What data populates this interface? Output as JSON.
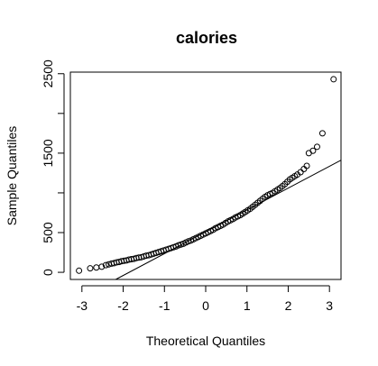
{
  "chart_data": {
    "type": "scatter",
    "title": "calories",
    "xlabel": "Theoretical Quantiles",
    "ylabel": "Sample Quantiles",
    "xlim": [
      -3.28,
      3.28
    ],
    "ylim": [
      -90,
      2520
    ],
    "xticks": [
      -3,
      -2,
      -1,
      0,
      1,
      2,
      3
    ],
    "xtick_labels": [
      "-3",
      "-2",
      "-1",
      "0",
      "1",
      "2",
      "3"
    ],
    "yticks": [
      0,
      500,
      1000,
      1500,
      2000,
      2500
    ],
    "ytick_labels": [
      "0",
      "500",
      "",
      "1500",
      "",
      "2500"
    ],
    "grid": false,
    "reference_line": {
      "intercept": 510,
      "slope": 275
    },
    "series": [
      {
        "marker": "open-circle",
        "points": [
          [
            -3.07,
            20
          ],
          [
            -2.8,
            50
          ],
          [
            -2.65,
            60
          ],
          [
            -2.52,
            70
          ],
          [
            -2.42,
            90
          ],
          [
            -2.35,
            100
          ],
          [
            -2.28,
            110
          ],
          [
            -2.22,
            115
          ],
          [
            -2.16,
            125
          ],
          [
            -2.1,
            130
          ],
          [
            -2.04,
            140
          ],
          [
            -1.98,
            145
          ],
          [
            -1.92,
            150
          ],
          [
            -1.86,
            160
          ],
          [
            -1.8,
            165
          ],
          [
            -1.74,
            170
          ],
          [
            -1.68,
            180
          ],
          [
            -1.62,
            185
          ],
          [
            -1.56,
            190
          ],
          [
            -1.5,
            200
          ],
          [
            -1.44,
            210
          ],
          [
            -1.38,
            215
          ],
          [
            -1.32,
            225
          ],
          [
            -1.26,
            235
          ],
          [
            -1.2,
            245
          ],
          [
            -1.14,
            255
          ],
          [
            -1.08,
            265
          ],
          [
            -1.02,
            275
          ],
          [
            -0.96,
            285
          ],
          [
            -0.9,
            295
          ],
          [
            -0.84,
            305
          ],
          [
            -0.78,
            315
          ],
          [
            -0.72,
            325
          ],
          [
            -0.66,
            340
          ],
          [
            -0.6,
            350
          ],
          [
            -0.54,
            360
          ],
          [
            -0.48,
            375
          ],
          [
            -0.42,
            390
          ],
          [
            -0.36,
            400
          ],
          [
            -0.3,
            415
          ],
          [
            -0.24,
            430
          ],
          [
            -0.18,
            445
          ],
          [
            -0.12,
            460
          ],
          [
            -0.06,
            475
          ],
          [
            0.0,
            490
          ],
          [
            0.06,
            505
          ],
          [
            0.12,
            520
          ],
          [
            0.18,
            535
          ],
          [
            0.24,
            555
          ],
          [
            0.3,
            570
          ],
          [
            0.36,
            585
          ],
          [
            0.42,
            600
          ],
          [
            0.48,
            620
          ],
          [
            0.54,
            640
          ],
          [
            0.6,
            655
          ],
          [
            0.66,
            670
          ],
          [
            0.72,
            690
          ],
          [
            0.78,
            705
          ],
          [
            0.84,
            720
          ],
          [
            0.9,
            740
          ],
          [
            0.96,
            760
          ],
          [
            1.02,
            780
          ],
          [
            1.08,
            800
          ],
          [
            1.14,
            825
          ],
          [
            1.2,
            850
          ],
          [
            1.26,
            875
          ],
          [
            1.32,
            900
          ],
          [
            1.38,
            925
          ],
          [
            1.44,
            950
          ],
          [
            1.5,
            970
          ],
          [
            1.56,
            985
          ],
          [
            1.62,
            1000
          ],
          [
            1.68,
            1020
          ],
          [
            1.74,
            1040
          ],
          [
            1.8,
            1060
          ],
          [
            1.86,
            1085
          ],
          [
            1.92,
            1110
          ],
          [
            1.98,
            1140
          ],
          [
            2.04,
            1170
          ],
          [
            2.1,
            1190
          ],
          [
            2.16,
            1210
          ],
          [
            2.22,
            1230
          ],
          [
            2.3,
            1260
          ],
          [
            2.38,
            1300
          ],
          [
            2.45,
            1340
          ],
          [
            2.5,
            1500
          ],
          [
            2.6,
            1530
          ],
          [
            2.7,
            1580
          ],
          [
            2.83,
            1750
          ],
          [
            3.1,
            2430
          ]
        ]
      }
    ]
  }
}
